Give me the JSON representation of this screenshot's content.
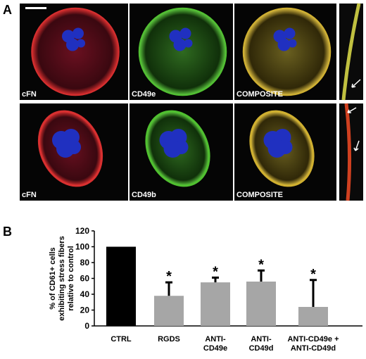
{
  "figure": {
    "panel_a": "A",
    "panel_b": "B",
    "image_labels": [
      [
        "cFN",
        "CD49e",
        "COMPOSITE"
      ],
      [
        "cFN",
        "CD49b",
        "COMPOSITE"
      ]
    ]
  },
  "chart_data": {
    "type": "bar",
    "ylabel": "% of CD61+ cells\nexhibiting stress fibers\nrelative to control",
    "categories": [
      "CTRL",
      "RGDS",
      "ANTI-\nCD49e",
      "ANTI-\nCD49d",
      "ANTI-CD49e +\nANTI-CD49d"
    ],
    "values": [
      100,
      38,
      55,
      56,
      24
    ],
    "errors": [
      null,
      17,
      6,
      14,
      34
    ],
    "annotations": [
      null,
      "*",
      "*",
      "*",
      "*"
    ],
    "colors": [
      "#000000",
      "#a6a6a6",
      "#a6a6a6",
      "#a6a6a6",
      "#a6a6a6"
    ],
    "ylim": [
      0,
      120
    ],
    "yticks": [
      0,
      20,
      40,
      60,
      80,
      100,
      120
    ]
  }
}
